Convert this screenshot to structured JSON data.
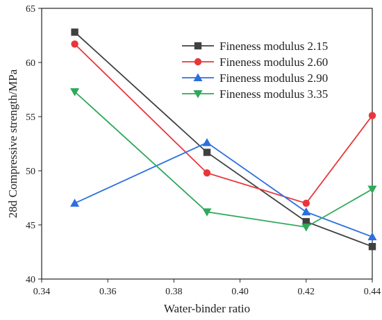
{
  "chart_data": {
    "type": "line",
    "title": "",
    "xlabel": "Water-binder ratio",
    "ylabel": "28d Compressive strength/MPa",
    "xlim": [
      0.34,
      0.44
    ],
    "ylim": [
      40,
      65
    ],
    "x_ticks": [
      "0.34",
      "0.36",
      "0.38",
      "0.40",
      "0.42",
      "0.44"
    ],
    "y_ticks": [
      "40",
      "45",
      "50",
      "55",
      "60",
      "65"
    ],
    "grid": false,
    "legend_position": "top-right",
    "x": [
      0.35,
      0.39,
      0.42,
      0.44
    ],
    "series": [
      {
        "name": "Fineness modulus 2.15",
        "color": "#404040",
        "marker": "square",
        "values": [
          62.8,
          51.7,
          45.3,
          43.0
        ]
      },
      {
        "name": "Fineness modulus 2.60",
        "color": "#e8363a",
        "marker": "circle",
        "values": [
          61.7,
          49.8,
          47.0,
          55.1
        ]
      },
      {
        "name": "Fineness modulus 2.90",
        "color": "#2b6fe0",
        "marker": "triangle-up",
        "values": [
          47.0,
          52.6,
          46.2,
          43.9
        ]
      },
      {
        "name": "Fineness modulus 3.35",
        "color": "#2ea85a",
        "marker": "triangle-down",
        "values": [
          57.3,
          46.2,
          44.8,
          48.3
        ]
      }
    ]
  }
}
